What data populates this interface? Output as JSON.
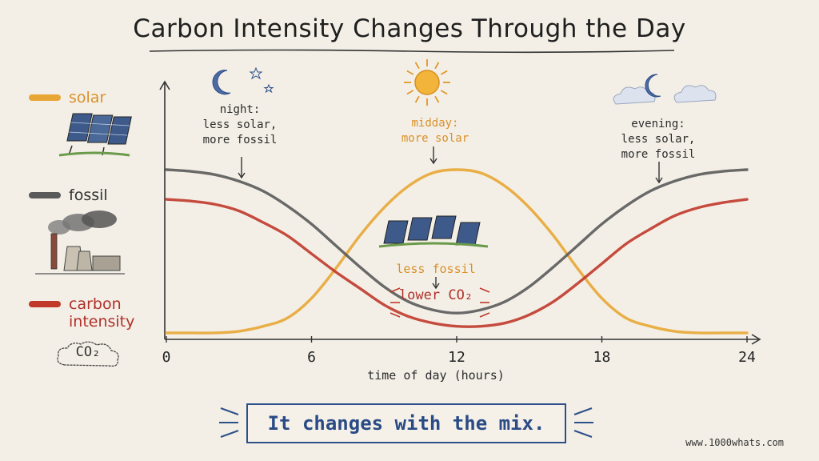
{
  "title": "Carbon Intensity Changes Through the Day",
  "legend": {
    "solar": "solar",
    "fossil": "fossil",
    "carbon_line1": "carbon",
    "carbon_line2": "intensity",
    "co2": "CO₂"
  },
  "annotations": {
    "night": [
      "night:",
      "less solar,",
      "more fossil"
    ],
    "midday": [
      "midday:",
      "more solar"
    ],
    "evening": [
      "evening:",
      "less solar,",
      "more fossil"
    ],
    "less_fossil": "less fossil",
    "lower_co2": "lower CO₂"
  },
  "callout": "It changes with the mix.",
  "footer": "www.1000whats.com",
  "colors": {
    "solar": "#e8a634",
    "fossil": "#5a5a5a",
    "carbon": "#c0392b",
    "accent_blue": "#2d4f8a"
  },
  "chart_data": {
    "type": "line",
    "title": "Carbon Intensity Changes Through the Day",
    "xlabel": "time of day (hours)",
    "ylabel": "",
    "xlim": [
      0,
      24
    ],
    "ylim": [
      0,
      1
    ],
    "xticks": [
      0,
      6,
      12,
      18,
      24
    ],
    "grid": false,
    "legend_position": "left",
    "x": [
      0,
      1,
      2,
      3,
      4,
      5,
      6,
      7,
      8,
      9,
      10,
      11,
      12,
      13,
      14,
      15,
      16,
      17,
      18,
      19,
      20,
      21,
      22,
      23,
      24
    ],
    "series": [
      {
        "name": "solar",
        "values": [
          0.01,
          0.01,
          0.01,
          0.02,
          0.05,
          0.1,
          0.22,
          0.4,
          0.6,
          0.77,
          0.9,
          0.98,
          1.0,
          0.98,
          0.9,
          0.77,
          0.6,
          0.4,
          0.22,
          0.1,
          0.05,
          0.02,
          0.01,
          0.01,
          0.01
        ]
      },
      {
        "name": "fossil",
        "values": [
          1.0,
          0.99,
          0.97,
          0.93,
          0.87,
          0.78,
          0.67,
          0.54,
          0.41,
          0.29,
          0.2,
          0.15,
          0.13,
          0.15,
          0.2,
          0.29,
          0.41,
          0.54,
          0.67,
          0.78,
          0.87,
          0.93,
          0.97,
          0.99,
          1.0
        ]
      },
      {
        "name": "carbon intensity",
        "values": [
          0.82,
          0.81,
          0.79,
          0.75,
          0.68,
          0.6,
          0.49,
          0.38,
          0.28,
          0.18,
          0.11,
          0.07,
          0.05,
          0.05,
          0.07,
          0.12,
          0.2,
          0.31,
          0.43,
          0.55,
          0.64,
          0.72,
          0.77,
          0.8,
          0.82
        ]
      }
    ]
  }
}
